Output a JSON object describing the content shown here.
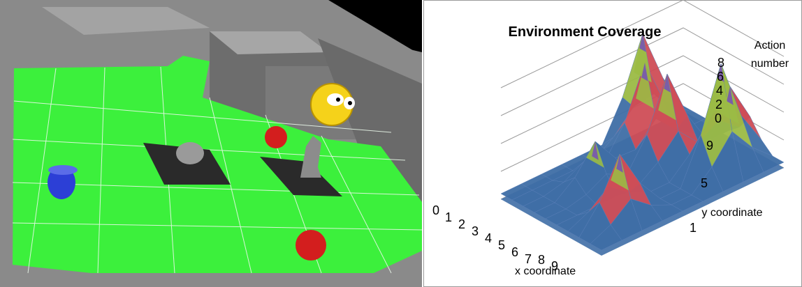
{
  "scene": {
    "objects": [
      "green-floor-grid",
      "walls",
      "blue-bucket",
      "rock-statue",
      "figure-statue",
      "apple-on-floor",
      "apple-near-pedestal",
      "smiley-agent"
    ]
  },
  "chart_data": {
    "type": "surface",
    "title": "Environment Coverage",
    "zlabel": "Action number",
    "xlabel": "x coordinate",
    "ylabel": "y coordinate",
    "z_ticks": [
      "8",
      "6",
      "4",
      "2",
      "0"
    ],
    "x_ticks": [
      "0",
      "1",
      "2",
      "3",
      "4",
      "5",
      "6",
      "7",
      "8",
      "9"
    ],
    "y_ticks": [
      "9",
      "5",
      "1"
    ],
    "zlim": [
      0,
      8
    ],
    "band_colors": [
      "#3f6ea6",
      "#cf4d57",
      "#9bbb45",
      "#7a5ea8"
    ],
    "peaks": [
      {
        "x": 0,
        "y": 7,
        "value": 7.0
      },
      {
        "x": 2,
        "y": 6,
        "value": 6.5
      },
      {
        "x": 4,
        "y": 6,
        "value": 6.6
      },
      {
        "x": 6,
        "y": 8,
        "value": 5.2
      },
      {
        "x": 7,
        "y": 7,
        "value": 8.0
      },
      {
        "x": 7,
        "y": 2,
        "value": 5.0
      },
      {
        "x": 3,
        "y": 3,
        "value": 3.4
      }
    ]
  }
}
